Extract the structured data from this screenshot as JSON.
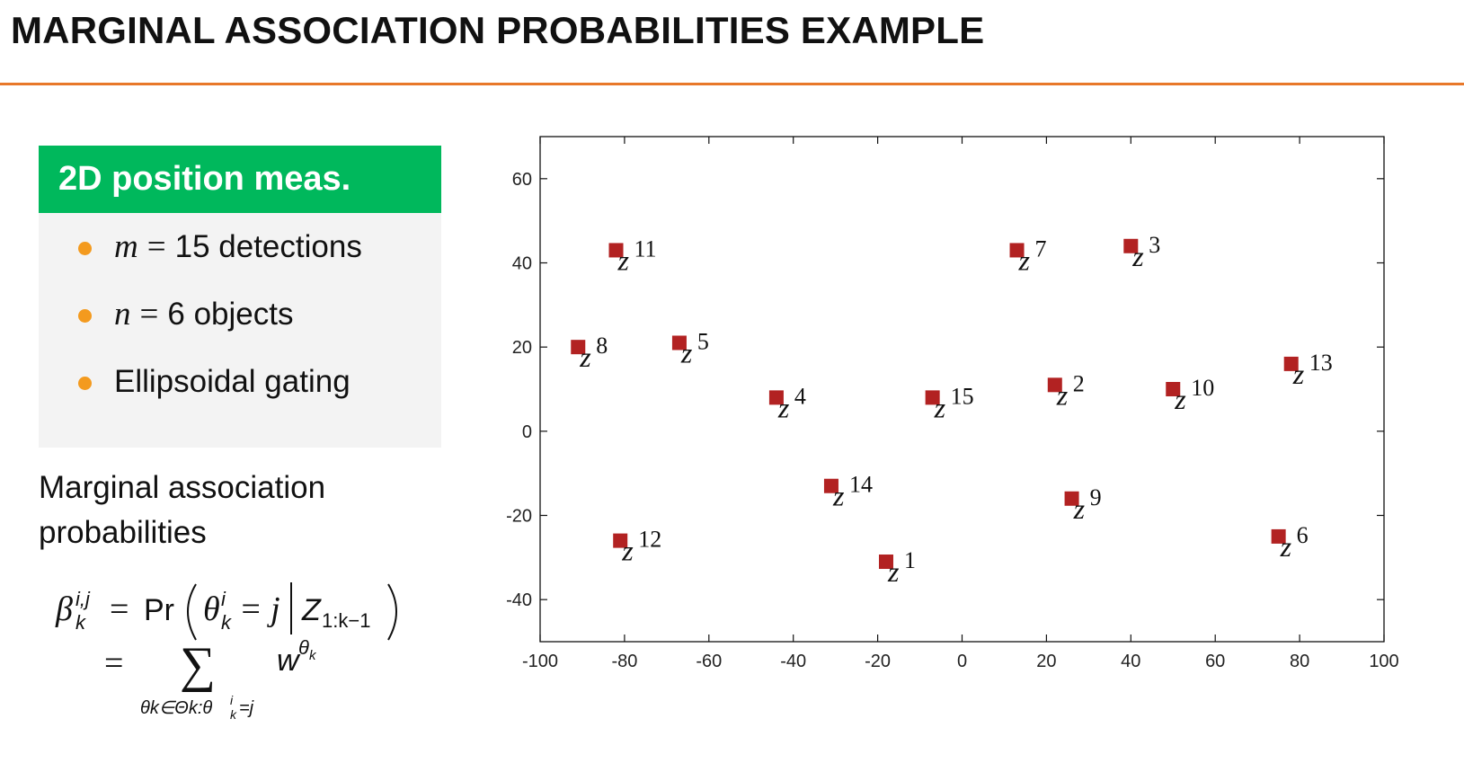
{
  "slide": {
    "title": "MARGINAL ASSOCIATION PROBABILITIES EXAMPLE",
    "accent_color": "#e8782a"
  },
  "block": {
    "header": "2D position meas.",
    "header_color": "#00b85c",
    "bullet_color": "#f39a1e",
    "items": [
      {
        "var": "m",
        "eq": "=",
        "text": "15 detections"
      },
      {
        "var": "n",
        "eq": "=",
        "text": "6 objects"
      },
      {
        "var": "",
        "eq": "",
        "text": "Ellipsoidal gating"
      }
    ]
  },
  "marginal": {
    "label_line1": "Marginal association",
    "label_line2": "probabilities"
  },
  "formula": {
    "beta": "β",
    "sub_k": "k",
    "sup_ij": "i,j",
    "eq": "=",
    "pr": "Pr",
    "theta": "θ",
    "sup_i": "i",
    "eq_j": "= j",
    "z": "Z",
    "z_sub": "1:k−1",
    "sigma": "∑",
    "w": "w",
    "w_sup": "θ",
    "w_sup_sub": "k",
    "sum_sub": "θk∈Θk:θ",
    "sum_sub_tail": "=j"
  },
  "chart_data": {
    "type": "scatter",
    "title": "",
    "xlabel": "",
    "ylabel": "",
    "xlim": [
      -100,
      100
    ],
    "ylim": [
      -50,
      70
    ],
    "xticks": [
      -100,
      -80,
      -60,
      -40,
      -20,
      0,
      20,
      40,
      60,
      80,
      100
    ],
    "yticks": [
      -40,
      -20,
      0,
      20,
      40,
      60
    ],
    "grid": false,
    "marker": "square",
    "marker_color": "#b22222",
    "label_prefix": "z",
    "points": [
      {
        "label": "1",
        "x": -18,
        "y": -31
      },
      {
        "label": "2",
        "x": 22,
        "y": 11
      },
      {
        "label": "3",
        "x": 40,
        "y": 44
      },
      {
        "label": "4",
        "x": -44,
        "y": 8
      },
      {
        "label": "5",
        "x": -67,
        "y": 21
      },
      {
        "label": "6",
        "x": 75,
        "y": -25
      },
      {
        "label": "7",
        "x": 13,
        "y": 43
      },
      {
        "label": "8",
        "x": -91,
        "y": 20
      },
      {
        "label": "9",
        "x": 26,
        "y": -16
      },
      {
        "label": "10",
        "x": 50,
        "y": 10
      },
      {
        "label": "11",
        "x": -82,
        "y": 43
      },
      {
        "label": "12",
        "x": -81,
        "y": -26
      },
      {
        "label": "13",
        "x": 78,
        "y": 16
      },
      {
        "label": "14",
        "x": -31,
        "y": -13
      },
      {
        "label": "15",
        "x": -7,
        "y": 8
      }
    ]
  }
}
